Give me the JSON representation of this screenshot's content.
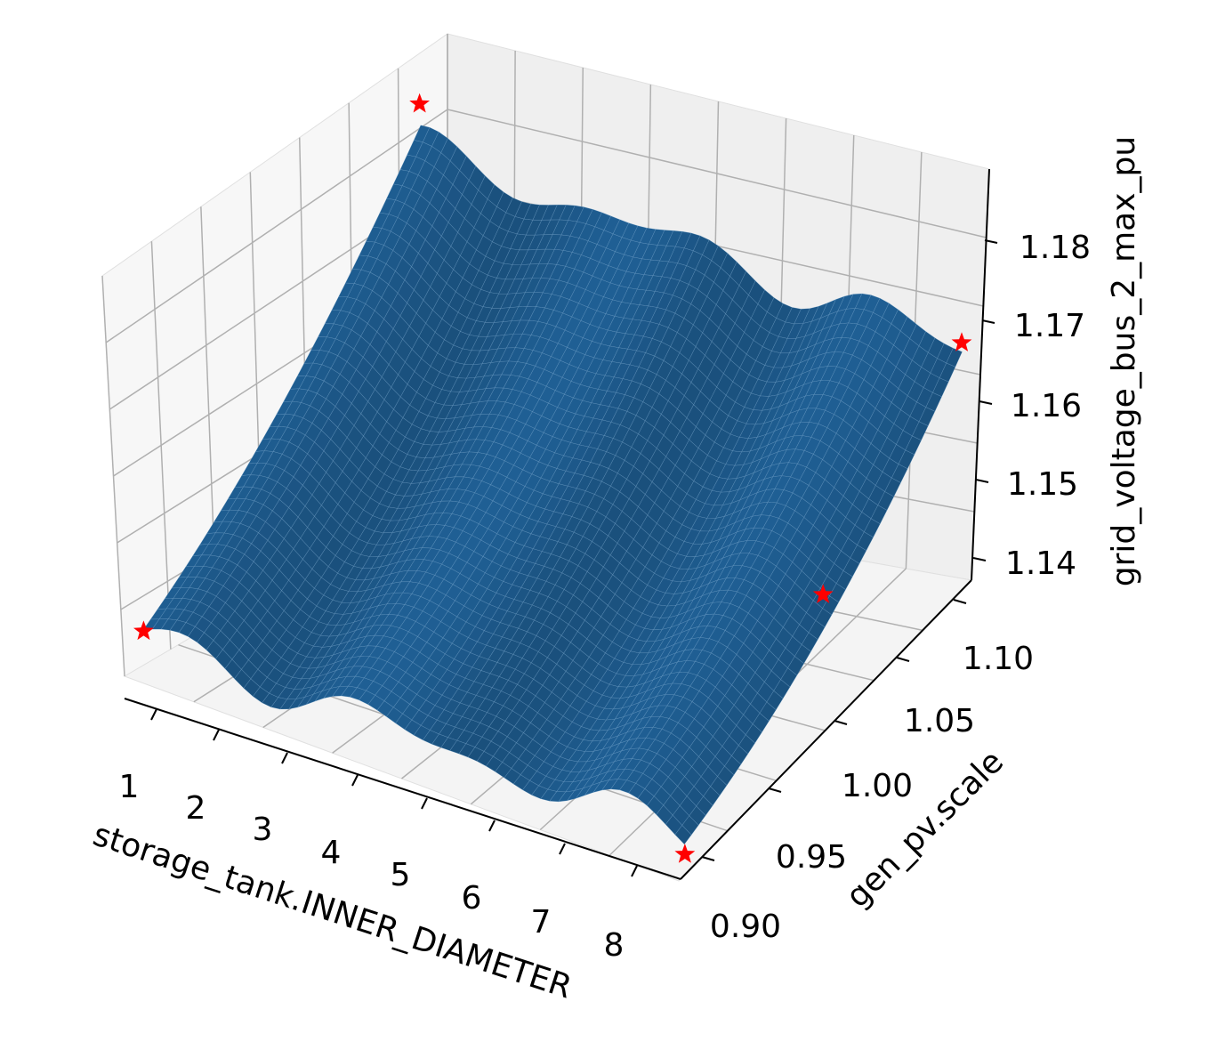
{
  "chart_data": {
    "type": "surface",
    "title": "",
    "xlabel": "storage_tank.INNER_DIAMETER",
    "ylabel": "gen_pv.scale",
    "zlabel": "grid_voltage_bus_2_max_pu",
    "x_ticks": [
      "1",
      "2",
      "3",
      "4",
      "5",
      "6",
      "7",
      "8"
    ],
    "y_ticks": [
      "0.90",
      "0.95",
      "1.00",
      "1.05",
      "1.10"
    ],
    "z_ticks": [
      "1.14",
      "1.15",
      "1.16",
      "1.17",
      "1.18"
    ],
    "xlim": [
      0.6,
      8.4
    ],
    "ylim": [
      0.89,
      1.12
    ],
    "zlim": [
      1.137,
      1.19
    ],
    "grid": true,
    "colors": {
      "surface": "#1f5f94",
      "marker": "#ff0000",
      "pane": "#f2f2f2",
      "grid": "#b0b0b0"
    },
    "marker_symbol": "star",
    "highlighted_points": [
      {
        "x": 0.7,
        "y": 0.9,
        "z": 1.142
      },
      {
        "x": 8.3,
        "y": 0.9,
        "z": 1.139
      },
      {
        "x": 0.7,
        "y": 1.11,
        "z": 1.187
      },
      {
        "x": 8.3,
        "y": 1.11,
        "z": 1.182
      },
      {
        "x": 8.3,
        "y": 1.005,
        "z": 1.161
      }
    ],
    "surface_model": {
      "description": "z increases roughly linearly with gen_pv.scale with small wavy ripples along storage_tank.INNER_DIAMETER",
      "z_at_y_min": 1.14,
      "z_at_y_max": 1.184
    }
  }
}
